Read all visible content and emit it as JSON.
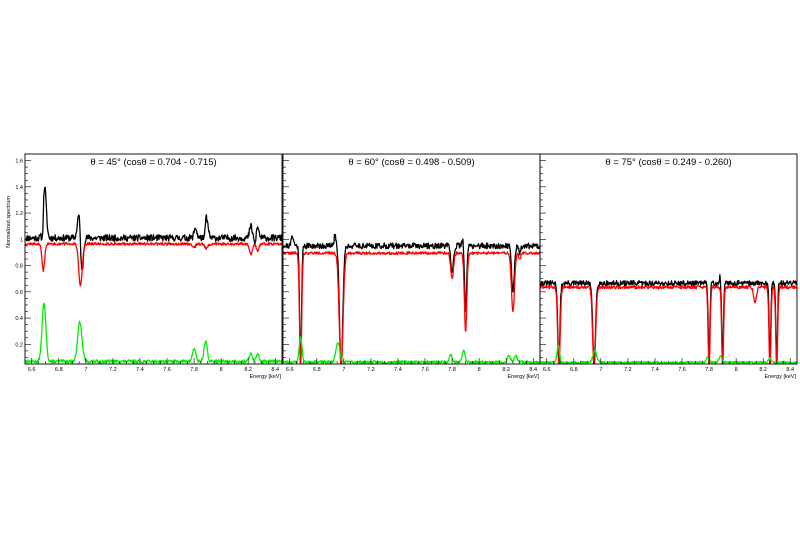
{
  "chart_data": {
    "type": "line",
    "ylabel": "Normalized spectrum",
    "xlabel": "Energy [keV]",
    "xlim": [
      6.55,
      8.45
    ],
    "ylim": [
      0.05,
      1.65
    ],
    "x_ticks": [
      6.6,
      6.8,
      7,
      7.2,
      7.4,
      7.6,
      7.8,
      8,
      8.2,
      8.4
    ],
    "y_ticks": [
      0.2,
      0.4,
      0.6,
      0.8,
      1,
      1.2,
      1.4,
      1.6
    ],
    "colors": {
      "black": "#000000",
      "red": "#ff0000",
      "green": "#00ee00"
    },
    "panels": [
      {
        "title": "θ = 45° (cosθ = 0.704 - 0.715)",
        "show_ylabel": true,
        "series": [
          {
            "color": "black",
            "baseline": 1.01,
            "noise": 0.025,
            "seed": 11,
            "features": [
              [
                6.695,
                0.4,
                0.012
              ],
              [
                6.68,
                -0.15,
                0.006
              ],
              [
                6.95,
                0.2,
                0.012
              ],
              [
                6.97,
                -0.3,
                0.01
              ],
              [
                7.81,
                0.08,
                0.01
              ],
              [
                7.89,
                0.16,
                0.012
              ],
              [
                7.875,
                -0.08,
                0.006
              ],
              [
                8.22,
                0.09,
                0.01
              ],
              [
                8.27,
                0.08,
                0.01
              ],
              [
                8.25,
                -0.06,
                0.006
              ]
            ]
          },
          {
            "color": "red",
            "baseline": 0.965,
            "noise": 0.01,
            "seed": 12,
            "features": [
              [
                6.685,
                -0.2,
                0.01
              ],
              [
                6.96,
                -0.32,
                0.013
              ],
              [
                7.8,
                -0.03,
                0.01
              ],
              [
                7.89,
                -0.04,
                0.01
              ],
              [
                8.22,
                -0.08,
                0.012
              ],
              [
                8.27,
                -0.05,
                0.01
              ]
            ]
          },
          {
            "color": "green",
            "baseline": 0.07,
            "noise": 0.012,
            "seed": 13,
            "features": [
              [
                6.69,
                0.44,
                0.014
              ],
              [
                6.955,
                0.3,
                0.016
              ],
              [
                7.8,
                0.1,
                0.012
              ],
              [
                7.885,
                0.15,
                0.012
              ],
              [
                8.22,
                0.07,
                0.01
              ],
              [
                8.27,
                0.06,
                0.01
              ]
            ]
          }
        ]
      },
      {
        "title": "θ = 60° (cosθ = 0.498 - 0.509)",
        "show_ylabel": false,
        "series": [
          {
            "color": "black",
            "baseline": 0.95,
            "noise": 0.022,
            "seed": 21,
            "features": [
              [
                6.62,
                0.08,
                0.008
              ],
              [
                6.68,
                -0.9,
                0.007
              ],
              [
                6.935,
                0.08,
                0.008
              ],
              [
                6.98,
                -0.92,
                0.012
              ],
              [
                7.8,
                -0.2,
                0.01
              ],
              [
                7.9,
                -0.5,
                0.008
              ],
              [
                7.88,
                0.06,
                0.006
              ],
              [
                8.25,
                -0.35,
                0.01
              ],
              [
                8.3,
                -0.05,
                0.008
              ]
            ]
          },
          {
            "color": "red",
            "baseline": 0.895,
            "noise": 0.01,
            "seed": 22,
            "features": [
              [
                6.68,
                -0.87,
                0.008
              ],
              [
                6.98,
                -0.87,
                0.014
              ],
              [
                7.8,
                -0.2,
                0.01
              ],
              [
                7.9,
                -0.6,
                0.009
              ],
              [
                8.25,
                -0.45,
                0.011
              ],
              [
                8.3,
                -0.05,
                0.008
              ]
            ]
          },
          {
            "color": "green",
            "baseline": 0.065,
            "noise": 0.01,
            "seed": 23,
            "features": [
              [
                6.68,
                0.19,
                0.01
              ],
              [
                6.955,
                0.15,
                0.014
              ],
              [
                7.79,
                0.06,
                0.01
              ],
              [
                7.885,
                0.09,
                0.01
              ],
              [
                8.22,
                0.05,
                0.01
              ],
              [
                8.27,
                0.05,
                0.01
              ]
            ]
          }
        ]
      },
      {
        "title": "θ = 75° (cosθ = 0.249 - 0.260)",
        "show_ylabel": false,
        "series": [
          {
            "color": "black",
            "baseline": 0.665,
            "noise": 0.02,
            "seed": 31,
            "features": [
              [
                6.69,
                -0.63,
                0.008
              ],
              [
                6.7,
                0.05,
                0.004
              ],
              [
                6.95,
                -0.62,
                0.01
              ],
              [
                7.8,
                -0.6,
                0.006
              ],
              [
                7.9,
                -0.6,
                0.006
              ],
              [
                7.88,
                0.05,
                0.004
              ],
              [
                8.25,
                -0.58,
                0.006
              ],
              [
                8.3,
                -0.58,
                0.006
              ]
            ]
          },
          {
            "color": "red",
            "baseline": 0.635,
            "noise": 0.012,
            "seed": 32,
            "features": [
              [
                6.69,
                -0.62,
                0.009
              ],
              [
                6.95,
                -0.62,
                0.011
              ],
              [
                7.8,
                -0.62,
                0.007
              ],
              [
                7.9,
                -0.62,
                0.007
              ],
              [
                8.14,
                -0.12,
                0.01
              ],
              [
                8.25,
                -0.62,
                0.007
              ],
              [
                8.3,
                -0.62,
                0.007
              ]
            ]
          },
          {
            "color": "green",
            "baseline": 0.062,
            "noise": 0.008,
            "seed": 33,
            "features": [
              [
                6.685,
                0.13,
                0.01
              ],
              [
                6.955,
                0.09,
                0.014
              ],
              [
                7.79,
                0.04,
                0.01
              ],
              [
                7.885,
                0.05,
                0.01
              ],
              [
                8.25,
                0.03,
                0.01
              ]
            ]
          }
        ]
      }
    ]
  }
}
